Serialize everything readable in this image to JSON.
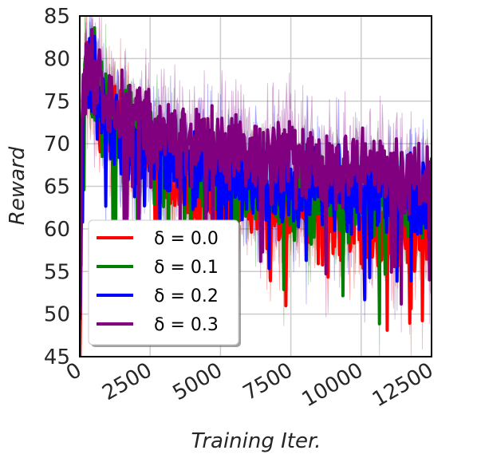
{
  "chart_data": {
    "type": "line",
    "title": "",
    "xlabel": "Training Iter.",
    "ylabel": "Reward",
    "xlim": [
      0,
      12500
    ],
    "ylim": [
      45,
      85
    ],
    "xticks": [
      "0",
      "2500",
      "5000",
      "7500",
      "10000",
      "12500"
    ],
    "yticks": [
      "45",
      "50",
      "55",
      "60",
      "65",
      "70",
      "75",
      "80",
      "85"
    ],
    "grid": true,
    "legend_position": "lower-left",
    "series": [
      {
        "name": "δ = 0.0",
        "color": "#ff0000",
        "x": [
          0,
          100,
          250,
          500,
          750,
          1000,
          1500,
          2000,
          2500,
          3000,
          3500,
          4000,
          4500,
          5000,
          5500,
          6000,
          6500,
          7000,
          7500,
          8000,
          8500,
          9000,
          9500,
          10000,
          10500,
          11000,
          11500,
          12000,
          12500
        ],
        "y": [
          45,
          74,
          80,
          79,
          74,
          72,
          71,
          70,
          69,
          67,
          66,
          65,
          64,
          64,
          63,
          63,
          62,
          62,
          62,
          61,
          61,
          61,
          61,
          61,
          60,
          60,
          60,
          60,
          60
        ]
      },
      {
        "name": "δ = 0.1",
        "color": "#008000",
        "x": [
          0,
          100,
          250,
          500,
          750,
          1000,
          1500,
          2000,
          2500,
          3000,
          3500,
          4000,
          4500,
          5000,
          5500,
          6000,
          6500,
          7000,
          7500,
          8000,
          8500,
          9000,
          9500,
          10000,
          10500,
          11000,
          11500,
          12000,
          12500
        ],
        "y": [
          50,
          75,
          80,
          79,
          75,
          73,
          72,
          71,
          70,
          69,
          68,
          67,
          67,
          66,
          66,
          65,
          65,
          65,
          64,
          64,
          64,
          63,
          63,
          63,
          63,
          63,
          63,
          63,
          63
        ]
      },
      {
        "name": "δ = 0.2",
        "color": "#0000ff",
        "x": [
          0,
          100,
          250,
          500,
          750,
          1000,
          1500,
          2000,
          2500,
          3000,
          3500,
          4000,
          4500,
          5000,
          5500,
          6000,
          6500,
          7000,
          7500,
          8000,
          8500,
          9000,
          9500,
          10000,
          10500,
          11000,
          11500,
          12000,
          12500
        ],
        "y": [
          49,
          74,
          79,
          78,
          73,
          71,
          70,
          69,
          69,
          68,
          68,
          67,
          67,
          67,
          66,
          66,
          66,
          66,
          65,
          65,
          65,
          65,
          65,
          64,
          64,
          64,
          64,
          64,
          64
        ]
      },
      {
        "name": "δ = 0.3",
        "color": "#800080",
        "x": [
          0,
          100,
          250,
          500,
          750,
          1000,
          1500,
          2000,
          2500,
          3000,
          3500,
          4000,
          4500,
          5000,
          5500,
          6000,
          6500,
          7000,
          7500,
          8000,
          8500,
          9000,
          9500,
          10000,
          10500,
          11000,
          11500,
          12000,
          12500
        ],
        "y": [
          50,
          76,
          80,
          79,
          76,
          75,
          74,
          73,
          72,
          71,
          71,
          70,
          70,
          69,
          69,
          69,
          68,
          68,
          68,
          68,
          67,
          67,
          67,
          67,
          67,
          66,
          66,
          66,
          66
        ]
      }
    ]
  }
}
